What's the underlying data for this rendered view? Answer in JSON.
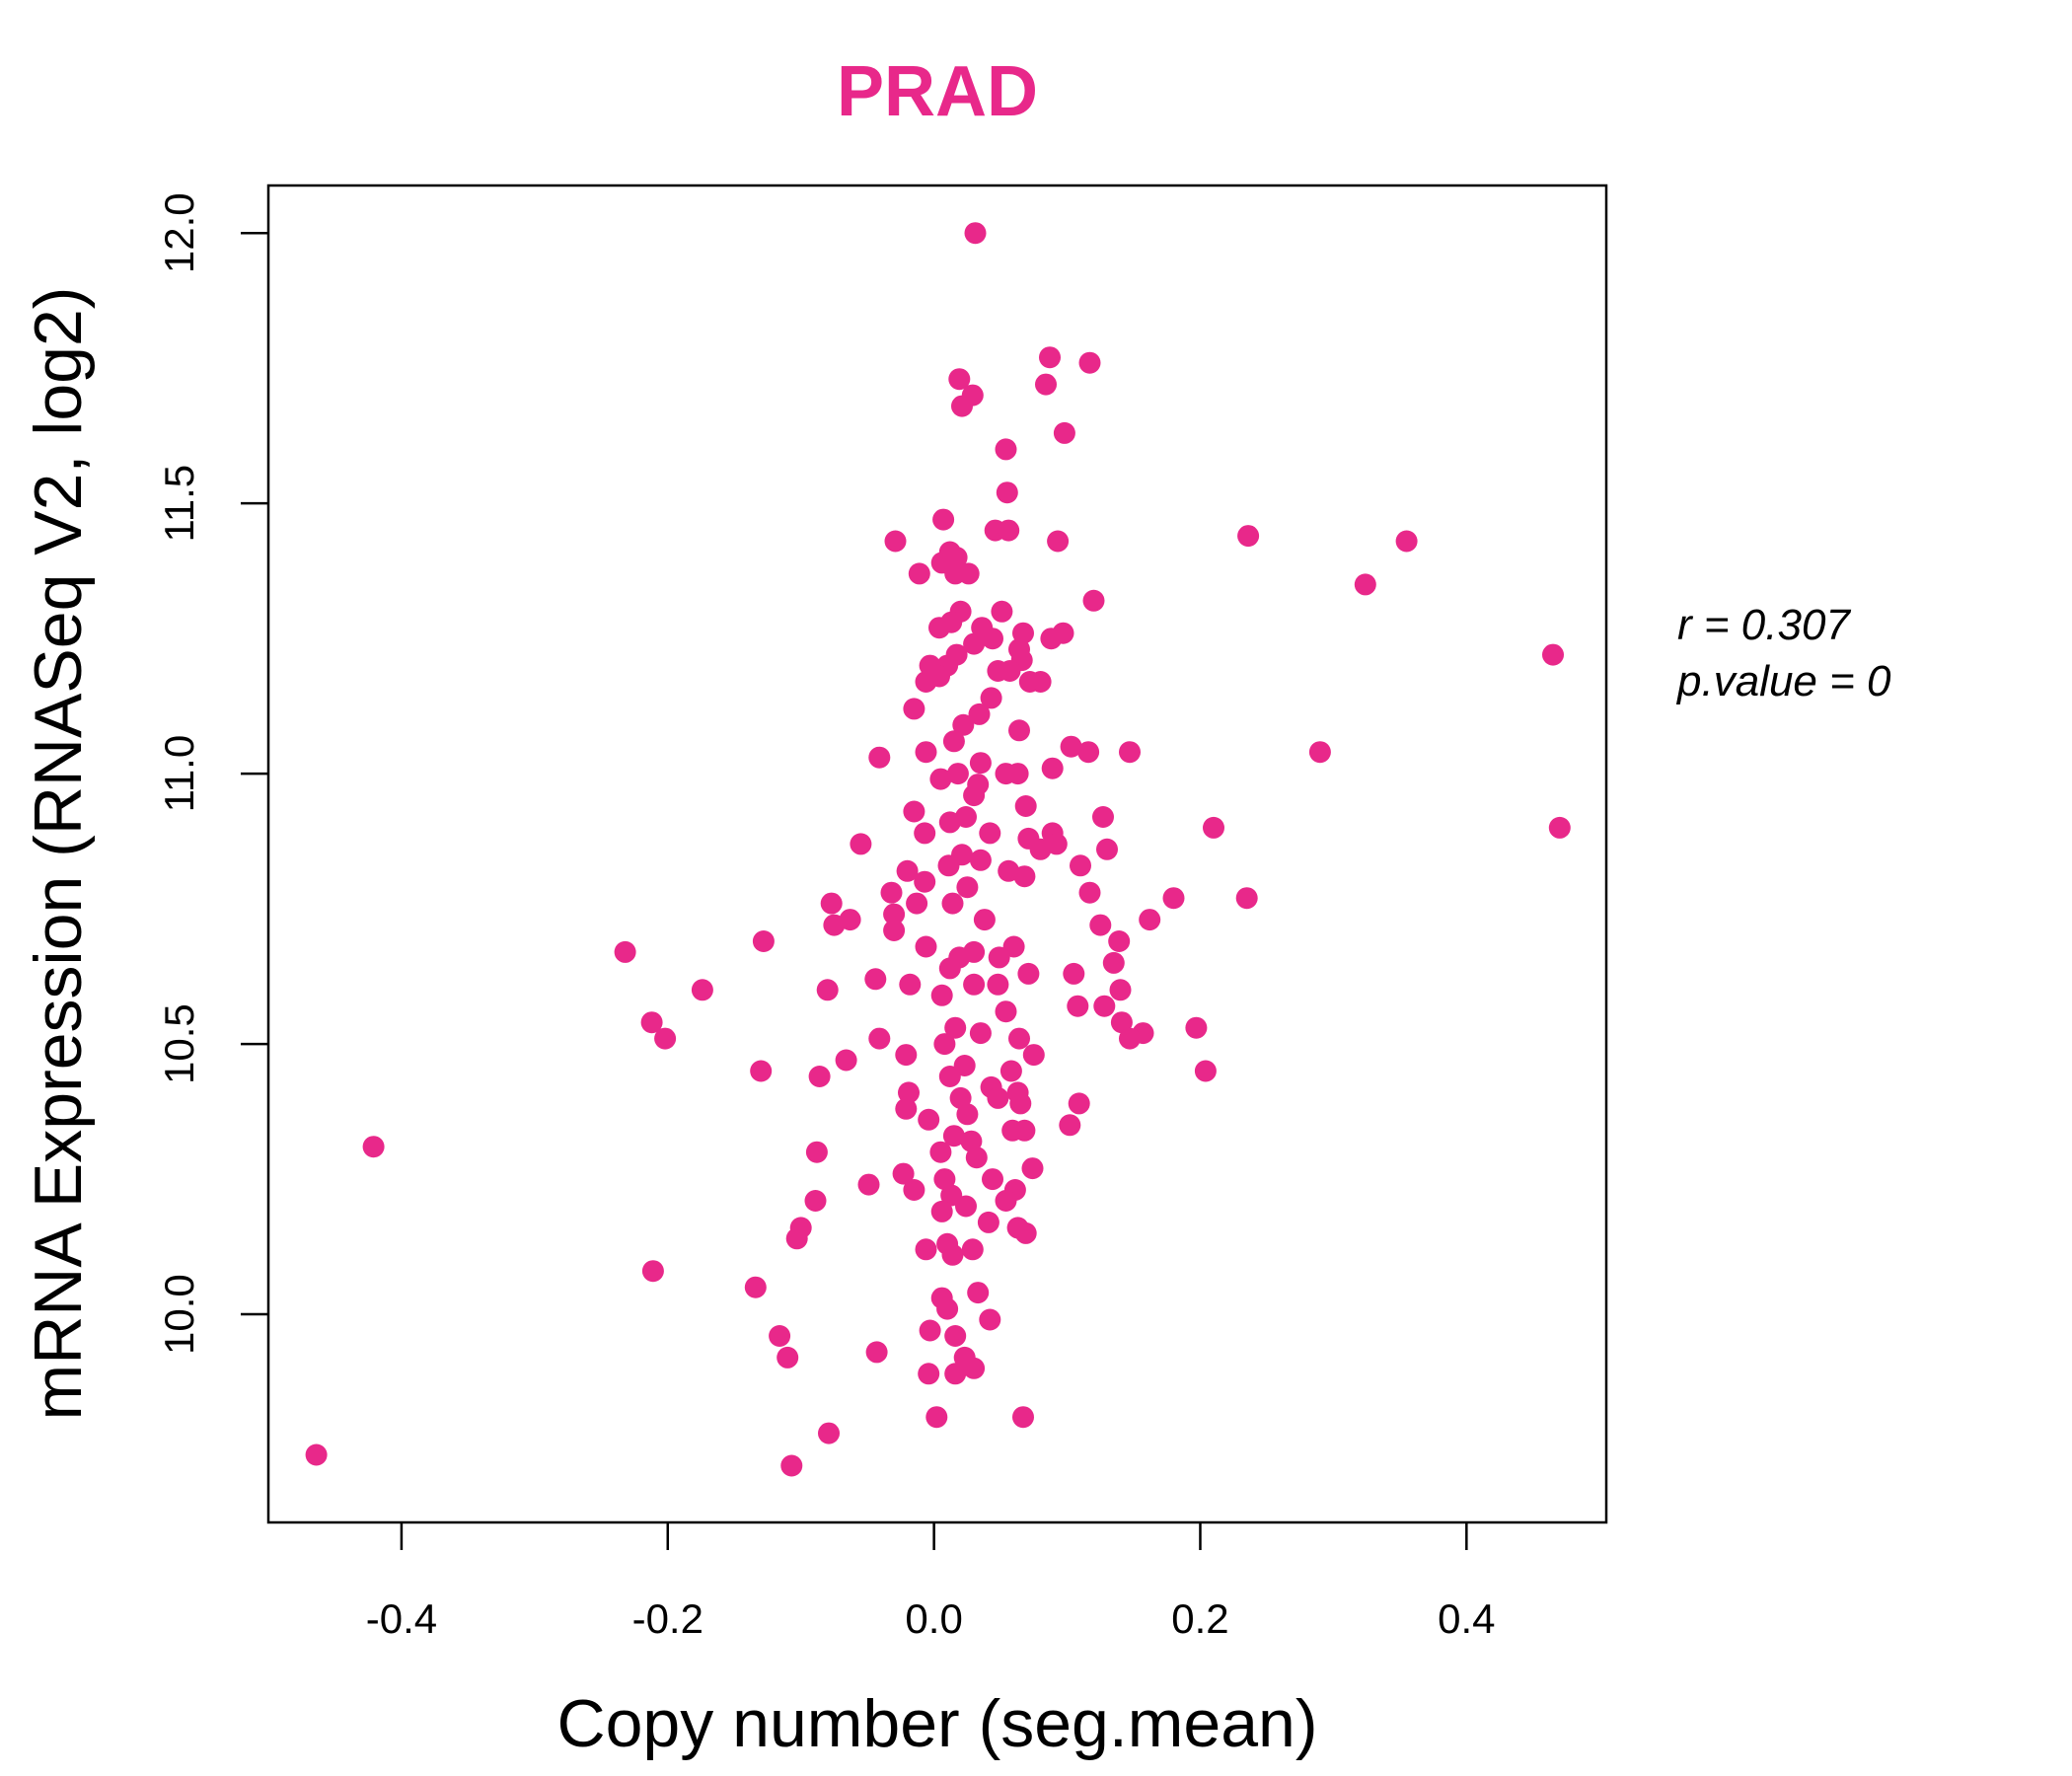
{
  "chart_data": {
    "type": "scatter",
    "title": "PRAD",
    "xlabel": "Copy number (seg.mean)",
    "ylabel": "mRNA Expression (RNASeq V2, log2)",
    "xlim": [
      -0.5,
      0.505
    ],
    "ylim": [
      9.615,
      12.088
    ],
    "xticks": [
      -0.4,
      -0.2,
      0.0,
      0.2,
      0.4
    ],
    "xtick_labels": [
      "-0.4",
      "-0.2",
      "0.0",
      "0.2",
      "0.4"
    ],
    "yticks": [
      10.0,
      10.5,
      11.0,
      11.5,
      12.0
    ],
    "ytick_labels": [
      "10.0",
      "10.5",
      "11.0",
      "11.5",
      "12.0"
    ],
    "point_color": "#E8288A",
    "stats": {
      "r_label": "r = 0.307",
      "p_label": "p.value = 0"
    },
    "series": [
      {
        "name": "PRAD",
        "points": [
          [
            0.031,
            12.0
          ],
          [
            0.087,
            11.77
          ],
          [
            0.117,
            11.76
          ],
          [
            0.019,
            11.73
          ],
          [
            0.084,
            11.72
          ],
          [
            0.029,
            11.7
          ],
          [
            0.021,
            11.68
          ],
          [
            0.098,
            11.63
          ],
          [
            0.054,
            11.6
          ],
          [
            0.055,
            11.52
          ],
          [
            0.007,
            11.47
          ],
          [
            0.046,
            11.45
          ],
          [
            0.056,
            11.45
          ],
          [
            0.236,
            11.44
          ],
          [
            0.355,
            11.43
          ],
          [
            0.093,
            11.43
          ],
          [
            -0.029,
            11.43
          ],
          [
            0.012,
            11.41
          ],
          [
            0.017,
            11.4
          ],
          [
            0.006,
            11.39
          ],
          [
            0.016,
            11.37
          ],
          [
            -0.011,
            11.37
          ],
          [
            0.026,
            11.37
          ],
          [
            0.324,
            11.35
          ],
          [
            0.12,
            11.32
          ],
          [
            0.02,
            11.3
          ],
          [
            0.051,
            11.3
          ],
          [
            0.013,
            11.28
          ],
          [
            0.036,
            11.27
          ],
          [
            0.004,
            11.27
          ],
          [
            0.067,
            11.26
          ],
          [
            0.097,
            11.26
          ],
          [
            0.088,
            11.25
          ],
          [
            0.044,
            11.25
          ],
          [
            0.03,
            11.24
          ],
          [
            0.064,
            11.23
          ],
          [
            0.465,
            11.22
          ],
          [
            0.017,
            11.22
          ],
          [
            0.066,
            11.21
          ],
          [
            0.01,
            11.2
          ],
          [
            -0.003,
            11.2
          ],
          [
            0.048,
            11.19
          ],
          [
            0.057,
            11.19
          ],
          [
            0.004,
            11.18
          ],
          [
            0.072,
            11.17
          ],
          [
            -0.006,
            11.17
          ],
          [
            0.08,
            11.17
          ],
          [
            0.043,
            11.14
          ],
          [
            -0.015,
            11.12
          ],
          [
            0.034,
            11.11
          ],
          [
            0.022,
            11.09
          ],
          [
            0.064,
            11.08
          ],
          [
            0.015,
            11.06
          ],
          [
            0.103,
            11.05
          ],
          [
            0.116,
            11.04
          ],
          [
            0.147,
            11.04
          ],
          [
            -0.006,
            11.04
          ],
          [
            0.29,
            11.04
          ],
          [
            -0.041,
            11.03
          ],
          [
            0.035,
            11.02
          ],
          [
            0.054,
            11.0
          ],
          [
            0.089,
            11.01
          ],
          [
            0.018,
            11.0
          ],
          [
            0.063,
            11.0
          ],
          [
            0.005,
            10.99
          ],
          [
            0.033,
            10.98
          ],
          [
            0.03,
            10.96
          ],
          [
            -0.015,
            10.93
          ],
          [
            0.069,
            10.94
          ],
          [
            0.024,
            10.92
          ],
          [
            0.127,
            10.92
          ],
          [
            0.012,
            10.91
          ],
          [
            0.21,
            10.9
          ],
          [
            0.47,
            10.9
          ],
          [
            -0.007,
            10.89
          ],
          [
            0.089,
            10.89
          ],
          [
            0.042,
            10.89
          ],
          [
            0.071,
            10.88
          ],
          [
            0.092,
            10.87
          ],
          [
            -0.055,
            10.87
          ],
          [
            0.13,
            10.86
          ],
          [
            0.08,
            10.86
          ],
          [
            0.021,
            10.85
          ],
          [
            0.035,
            10.84
          ],
          [
            0.011,
            10.83
          ],
          [
            0.11,
            10.83
          ],
          [
            0.056,
            10.82
          ],
          [
            -0.02,
            10.82
          ],
          [
            0.068,
            10.81
          ],
          [
            -0.007,
            10.8
          ],
          [
            0.025,
            10.79
          ],
          [
            -0.032,
            10.78
          ],
          [
            0.117,
            10.78
          ],
          [
            0.18,
            10.77
          ],
          [
            0.235,
            10.77
          ],
          [
            0.014,
            10.76
          ],
          [
            -0.013,
            10.76
          ],
          [
            -0.077,
            10.76
          ],
          [
            -0.03,
            10.74
          ],
          [
            0.162,
            10.73
          ],
          [
            -0.063,
            10.73
          ],
          [
            0.038,
            10.73
          ],
          [
            0.125,
            10.72
          ],
          [
            -0.075,
            10.72
          ],
          [
            -0.03,
            10.71
          ],
          [
            0.139,
            10.69
          ],
          [
            -0.128,
            10.69
          ],
          [
            0.06,
            10.68
          ],
          [
            -0.006,
            10.68
          ],
          [
            0.03,
            10.67
          ],
          [
            -0.232,
            10.67
          ],
          [
            0.019,
            10.66
          ],
          [
            0.049,
            10.66
          ],
          [
            0.135,
            10.65
          ],
          [
            0.012,
            10.64
          ],
          [
            0.071,
            10.63
          ],
          [
            0.105,
            10.63
          ],
          [
            -0.044,
            10.62
          ],
          [
            -0.018,
            10.61
          ],
          [
            0.048,
            10.61
          ],
          [
            0.03,
            10.61
          ],
          [
            -0.08,
            10.6
          ],
          [
            -0.174,
            10.6
          ],
          [
            0.14,
            10.6
          ],
          [
            0.006,
            10.59
          ],
          [
            0.128,
            10.57
          ],
          [
            0.108,
            10.57
          ],
          [
            0.054,
            10.56
          ],
          [
            -0.212,
            10.54
          ],
          [
            0.141,
            10.54
          ],
          [
            0.016,
            10.53
          ],
          [
            0.197,
            10.53
          ],
          [
            0.035,
            10.52
          ],
          [
            0.157,
            10.52
          ],
          [
            0.147,
            10.51
          ],
          [
            -0.202,
            10.51
          ],
          [
            0.064,
            10.51
          ],
          [
            -0.041,
            10.51
          ],
          [
            0.008,
            10.5
          ],
          [
            -0.021,
            10.48
          ],
          [
            0.075,
            10.48
          ],
          [
            -0.066,
            10.47
          ],
          [
            0.023,
            10.46
          ],
          [
            0.058,
            10.45
          ],
          [
            0.204,
            10.45
          ],
          [
            -0.13,
            10.45
          ],
          [
            -0.086,
            10.44
          ],
          [
            0.012,
            10.44
          ],
          [
            0.043,
            10.42
          ],
          [
            0.063,
            10.41
          ],
          [
            -0.019,
            10.41
          ],
          [
            0.02,
            10.4
          ],
          [
            0.048,
            10.4
          ],
          [
            0.109,
            10.39
          ],
          [
            0.065,
            10.39
          ],
          [
            -0.021,
            10.38
          ],
          [
            0.025,
            10.37
          ],
          [
            -0.004,
            10.36
          ],
          [
            0.102,
            10.35
          ],
          [
            0.059,
            10.34
          ],
          [
            0.068,
            10.34
          ],
          [
            0.015,
            10.33
          ],
          [
            0.028,
            10.32
          ],
          [
            -0.421,
            10.31
          ],
          [
            -0.088,
            10.3
          ],
          [
            0.005,
            10.3
          ],
          [
            0.032,
            10.29
          ],
          [
            0.074,
            10.27
          ],
          [
            -0.023,
            10.26
          ],
          [
            0.008,
            10.25
          ],
          [
            0.044,
            10.25
          ],
          [
            -0.049,
            10.24
          ],
          [
            -0.015,
            10.23
          ],
          [
            0.061,
            10.23
          ],
          [
            0.013,
            10.22
          ],
          [
            -0.089,
            10.21
          ],
          [
            0.054,
            10.21
          ],
          [
            0.024,
            10.2
          ],
          [
            0.006,
            10.19
          ],
          [
            0.041,
            10.17
          ],
          [
            -0.1,
            10.16
          ],
          [
            0.063,
            10.16
          ],
          [
            0.069,
            10.15
          ],
          [
            -0.103,
            10.14
          ],
          [
            0.01,
            10.13
          ],
          [
            -0.006,
            10.12
          ],
          [
            0.029,
            10.12
          ],
          [
            0.014,
            10.11
          ],
          [
            -0.211,
            10.08
          ],
          [
            -0.134,
            10.05
          ],
          [
            0.033,
            10.04
          ],
          [
            0.006,
            10.03
          ],
          [
            0.01,
            10.01
          ],
          [
            0.042,
            9.99
          ],
          [
            -0.003,
            9.97
          ],
          [
            0.016,
            9.96
          ],
          [
            -0.116,
            9.96
          ],
          [
            -0.11,
            9.92
          ],
          [
            -0.043,
            9.93
          ],
          [
            0.023,
            9.92
          ],
          [
            0.03,
            9.9
          ],
          [
            0.016,
            9.89
          ],
          [
            -0.004,
            9.89
          ],
          [
            0.002,
            9.81
          ],
          [
            0.067,
            9.81
          ],
          [
            -0.079,
            9.78
          ],
          [
            -0.464,
            9.74
          ],
          [
            -0.107,
            9.72
          ]
        ]
      }
    ]
  }
}
